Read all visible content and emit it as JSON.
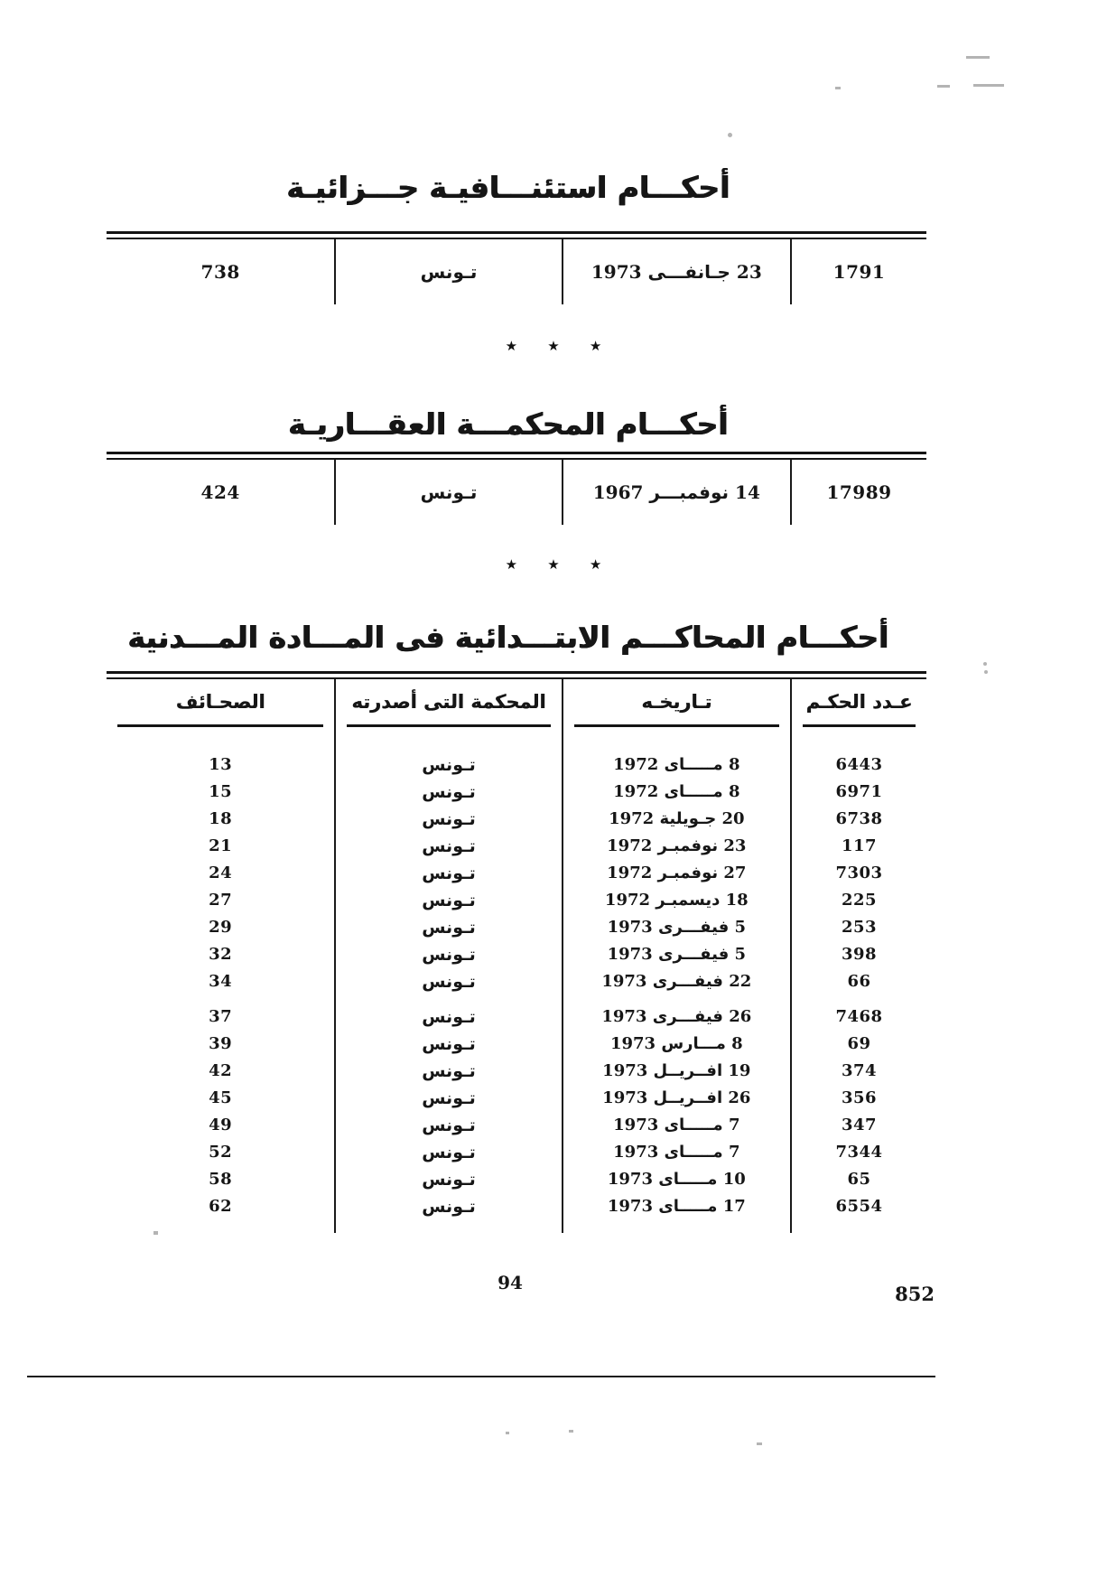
{
  "separator": "★ ★ ★",
  "sections": [
    {
      "title": "أحكـــام استئنـــافيـة جـــزائيـة",
      "row": {
        "no": "1791",
        "date": "23 جـانفـــى 1973",
        "court": "تـونس",
        "pages": "738"
      }
    },
    {
      "title": "أحكـــام المحكمـــة العقـــاريـة",
      "row": {
        "no": "17989",
        "date": "14 نوفمبـــر 1967",
        "court": "تـونس",
        "pages": "424"
      }
    },
    {
      "title": "أحكـــام المحاكـــم الابتـــدائية فى المـــادة المـــدنية",
      "headers": {
        "no": "عـدد الحكـم",
        "date": "تـاريخـه",
        "court": "المحكمة التى أصدرته",
        "pages": "الصحـائف"
      },
      "rows": [
        {
          "no": "6443",
          "date": "8 مـــــاى 1972",
          "court": "تـونس",
          "pages": "13"
        },
        {
          "no": "6971",
          "date": "8 مـــــاى 1972",
          "court": "تـونس",
          "pages": "15"
        },
        {
          "no": "6738",
          "date": "20 جـويلية 1972",
          "court": "تـونس",
          "pages": "18"
        },
        {
          "no": "117",
          "date": "23 نوفمبـر 1972",
          "court": "تـونس",
          "pages": "21"
        },
        {
          "no": "7303",
          "date": "27 نوفمبـر 1972",
          "court": "تـونس",
          "pages": "24"
        },
        {
          "no": "225",
          "date": "18 ديسمبـر 1972",
          "court": "تـونس",
          "pages": "27"
        },
        {
          "no": "253",
          "date": "5 فيفـــرى 1973",
          "court": "تـونس",
          "pages": "29"
        },
        {
          "no": "398",
          "date": "5 فيفـــرى 1973",
          "court": "تـونس",
          "pages": "32"
        },
        {
          "no": "66",
          "date": "22 فيفـــرى 1973",
          "court": "تـونس",
          "pages": "34"
        },
        {
          "no": "7468",
          "date": "26 فيفـــرى 1973",
          "court": "تـونس",
          "pages": "37"
        },
        {
          "no": "69",
          "date": "8 مـــارس 1973",
          "court": "تـونس",
          "pages": "39"
        },
        {
          "no": "374",
          "date": "19 افــريــل 1973",
          "court": "تـونس",
          "pages": "42"
        },
        {
          "no": "356",
          "date": "26 افــريــل 1973",
          "court": "تـونس",
          "pages": "45"
        },
        {
          "no": "347",
          "date": "7 مـــــاى 1973",
          "court": "تـونس",
          "pages": "49"
        },
        {
          "no": "7344",
          "date": "7 مـــــاى 1973",
          "court": "تـونس",
          "pages": "52"
        },
        {
          "no": "65",
          "date": "10 مـــــاى 1973",
          "court": "تـونس",
          "pages": "58"
        },
        {
          "no": "6554",
          "date": "17 مـــــاى 1973",
          "court": "تـونس",
          "pages": "62"
        }
      ]
    }
  ],
  "footer": {
    "page_number_center": "94",
    "page_number_right": "852"
  }
}
